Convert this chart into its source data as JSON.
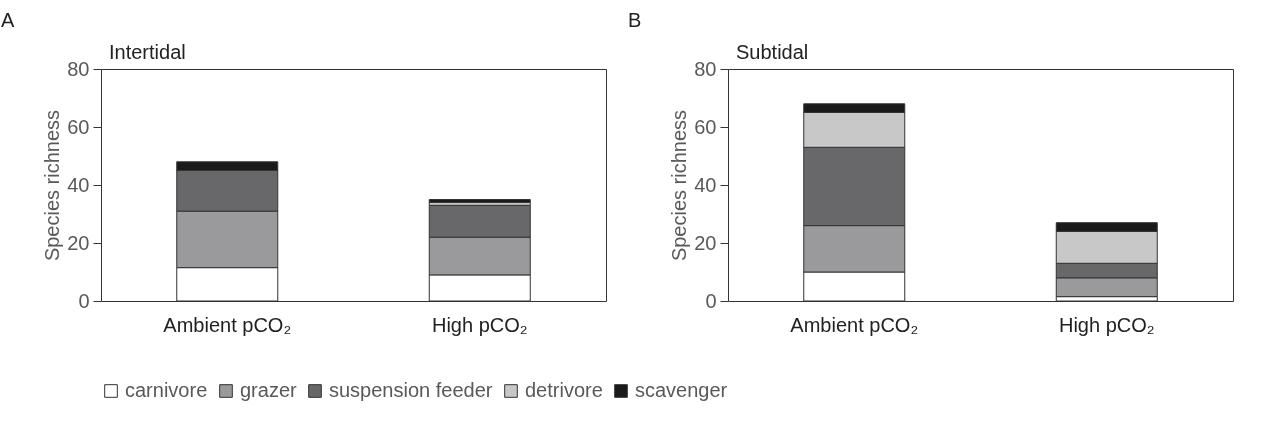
{
  "chart_data": [
    {
      "type": "bar",
      "stacked": true,
      "title": "Intertidal",
      "annotations": [
        "A"
      ],
      "ylabel": "Species richness",
      "categories": [
        "Ambient pCO₂",
        "High pCO₂"
      ],
      "ylim": [
        0,
        80
      ],
      "yticks": [
        0,
        20,
        40,
        60,
        80
      ],
      "legend": "bottom",
      "series": [
        {
          "name": "carnivore",
          "color": "#ffffff",
          "values": [
            11.5,
            9
          ]
        },
        {
          "name": "grazer",
          "color": "#9a9a9c",
          "values": [
            19.5,
            13
          ]
        },
        {
          "name": "suspension feeder",
          "color": "#68686b",
          "values": [
            14,
            11
          ]
        },
        {
          "name": "detrivore",
          "color": "#c8c8c8",
          "values": [
            0,
            1
          ]
        },
        {
          "name": "scavenger",
          "color": "#1a1a1a",
          "values": [
            3,
            1
          ]
        }
      ]
    },
    {
      "type": "bar",
      "stacked": true,
      "title": "Subtidal",
      "annotations": [
        "B"
      ],
      "ylabel": "Species richness",
      "categories": [
        "Ambient pCO₂",
        "High pCO₂"
      ],
      "ylim": [
        0,
        80
      ],
      "yticks": [
        0,
        20,
        40,
        60,
        80
      ],
      "legend": "bottom",
      "series": [
        {
          "name": "carnivore",
          "color": "#ffffff",
          "values": [
            10,
            1.5
          ]
        },
        {
          "name": "grazer",
          "color": "#9a9a9c",
          "values": [
            16,
            6.5
          ]
        },
        {
          "name": "suspension feeder",
          "color": "#68686b",
          "values": [
            27,
            5
          ]
        },
        {
          "name": "detrivore",
          "color": "#c8c8c8",
          "values": [
            12,
            11
          ]
        },
        {
          "name": "scavenger",
          "color": "#1a1a1a",
          "values": [
            3,
            3
          ]
        }
      ]
    }
  ]
}
